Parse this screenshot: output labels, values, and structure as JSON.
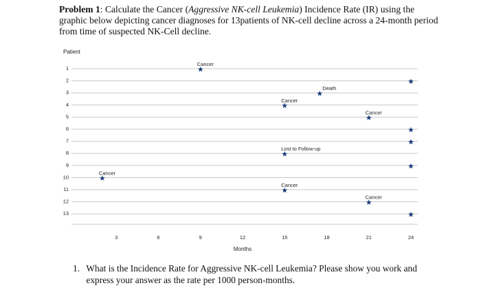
{
  "problem": {
    "label": "Problem 1",
    "text_a": ": Calculate the Cancer (",
    "italic": "Aggressive NK-cell Leukemia",
    "text_b": ") Incidence Rate (IR) using the graphic below depicting cancer diagnoses for 13patients of NK-cell decline across a 24-month period from time of suspected NK-Cell decline."
  },
  "question": {
    "number": "1.",
    "text": "What is the Incidence Rate for Aggressive NK-cell Leukemia? Please show you work and express your answer as the rate per 1000 person-months."
  },
  "chart_data": {
    "type": "scatter",
    "ylabel": "Patient",
    "xlabel": "Months",
    "y_ticks": [
      "1",
      "2",
      "3",
      "4",
      "5",
      "6",
      "7",
      "8",
      "9",
      "10",
      "11",
      "12",
      "13"
    ],
    "x_ticks": [
      "3",
      "6",
      "9",
      "12",
      "15",
      "18",
      "21",
      "24"
    ],
    "xlim": [
      0,
      24
    ],
    "ylim": [
      1,
      13
    ],
    "events": [
      {
        "patient": 1,
        "month": 9,
        "label": "Cancer"
      },
      {
        "patient": 2,
        "month": 24,
        "label": ""
      },
      {
        "patient": 3,
        "month": 17.5,
        "label": "Death"
      },
      {
        "patient": 4,
        "month": 15,
        "label": "Cancer"
      },
      {
        "patient": 5,
        "month": 21,
        "label": "Cancer"
      },
      {
        "patient": 6,
        "month": 24,
        "label": ""
      },
      {
        "patient": 7,
        "month": 24,
        "label": ""
      },
      {
        "patient": 8,
        "month": 15,
        "label": "Lost to Follow-up"
      },
      {
        "patient": 9,
        "month": 24,
        "label": ""
      },
      {
        "patient": 10,
        "month": 2,
        "label": "Cancer"
      },
      {
        "patient": 11,
        "month": 15,
        "label": "Cancer"
      },
      {
        "patient": 12,
        "month": 21,
        "label": "Cancer"
      },
      {
        "patient": 13,
        "month": 24,
        "label": ""
      }
    ],
    "marker": "star",
    "line_color": "#c8c8c8",
    "text_color": "#222222"
  }
}
